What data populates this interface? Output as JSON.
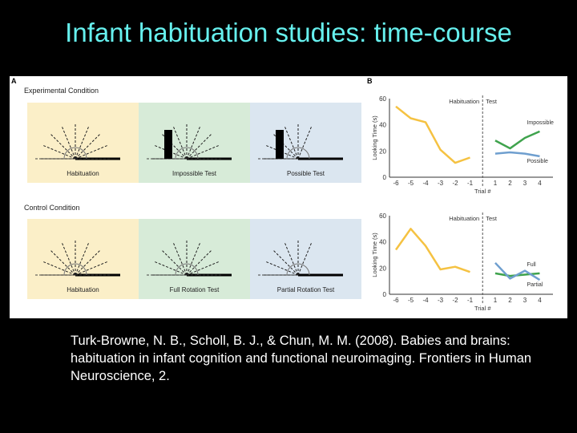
{
  "slide": {
    "title": "Infant habituation studies: time-course",
    "citation": "Turk-Browne, N. B., Scholl, B. J., & Chun, M. M. (2008). Babies and brains: habituation in infant cognition and functional neuroimaging. Frontiers in Human Neuroscience, 2."
  },
  "figure": {
    "panel_a_letter": "A",
    "panel_b_letter": "B",
    "experimental_label": "Experimental Condition",
    "control_label": "Control Condition",
    "experimental_panels": [
      "Habituation",
      "Impossible Test",
      "Possible Test"
    ],
    "control_panels": [
      "Habituation",
      "Full Rotation Test",
      "Partial Rotation Test"
    ],
    "panel_colors": [
      "#fbefc8",
      "#d7ebd8",
      "#dbe6f0"
    ]
  },
  "chart_data": [
    {
      "type": "line",
      "ylabel": "Looking Time (s)",
      "xlabel": "Trial #",
      "phase_labels": [
        "Habituation",
        "Test"
      ],
      "x_ticks": [
        "-6",
        "-5",
        "-4",
        "-3",
        "-2",
        "-1",
        "1",
        "2",
        "3",
        "4"
      ],
      "y_ticks": [
        0,
        20,
        40,
        60
      ],
      "ylim": [
        0,
        60
      ],
      "series": [
        {
          "name": "",
          "phase": "habituation",
          "color": "#f5c242",
          "x": [
            "-6",
            "-5",
            "-4",
            "-3",
            "-2",
            "-1"
          ],
          "values": [
            54,
            45,
            42,
            21,
            11,
            15
          ]
        },
        {
          "name": "Impossible",
          "phase": "test",
          "color": "#3fa34d",
          "x": [
            "1",
            "2",
            "3",
            "4"
          ],
          "values": [
            28,
            22,
            30,
            35
          ]
        },
        {
          "name": "Possible",
          "phase": "test",
          "color": "#6f9fcf",
          "x": [
            "1",
            "2",
            "3",
            "4"
          ],
          "values": [
            18,
            19,
            18,
            16
          ]
        }
      ]
    },
    {
      "type": "line",
      "ylabel": "Looking Time (s)",
      "xlabel": "Trial #",
      "phase_labels": [
        "Habituation",
        "Test"
      ],
      "x_ticks": [
        "-6",
        "-5",
        "-4",
        "-3",
        "-2",
        "-1",
        "1",
        "2",
        "3",
        "4"
      ],
      "y_ticks": [
        0,
        20,
        40,
        60
      ],
      "ylim": [
        0,
        60
      ],
      "series": [
        {
          "name": "",
          "phase": "habituation",
          "color": "#f5c242",
          "x": [
            "-6",
            "-5",
            "-4",
            "-3",
            "-2",
            "-1"
          ],
          "values": [
            34,
            50,
            37,
            19,
            21,
            17
          ]
        },
        {
          "name": "Full",
          "phase": "test",
          "color": "#3fa34d",
          "x": [
            "1",
            "2",
            "3",
            "4"
          ],
          "values": [
            16,
            14,
            15,
            16
          ]
        },
        {
          "name": "Partial",
          "phase": "test",
          "color": "#6f9fcf",
          "x": [
            "1",
            "2",
            "3",
            "4"
          ],
          "values": [
            24,
            12,
            18,
            11
          ]
        }
      ]
    }
  ]
}
